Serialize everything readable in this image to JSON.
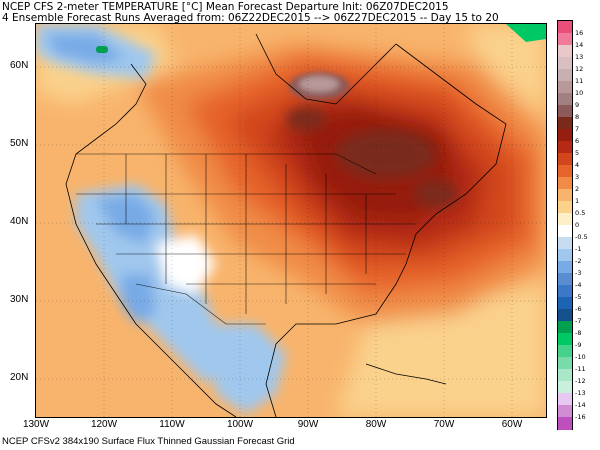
{
  "title": {
    "line1": "NCEP CFS 2-meter TEMPERATURE [°C] Mean Forecast Departure Init: 06Z07DEC2015",
    "line2": "4 Ensemble Forecast Runs Averaged from: 06Z22DEC2015 --> 06Z27DEC2015 -- Day 15 to 20"
  },
  "footer": "NCEP CFSv2 384x190 Surface Flux Thinned Gaussian Forecast Grid",
  "map": {
    "lat_labels": [
      "60N",
      "50N",
      "40N",
      "30N",
      "20N"
    ],
    "lon_labels": [
      "130W",
      "120W",
      "110W",
      "100W",
      "90W",
      "80W",
      "70W",
      "60W"
    ],
    "region": "North America",
    "extent": {
      "lon": [
        -130,
        -55
      ],
      "lat": [
        15,
        66
      ]
    }
  },
  "colorbar": {
    "levels": [
      "16",
      "14",
      "13",
      "12",
      "11",
      "10",
      "9",
      "8",
      "7",
      "6",
      "5",
      "4",
      "3",
      "2",
      "1",
      "0.5",
      "0",
      "-0.5",
      "-1",
      "-2",
      "-3",
      "-4",
      "-5",
      "-6",
      "-7",
      "-8",
      "-9",
      "-10",
      "-11",
      "-12",
      "-13",
      "-14",
      "-16"
    ],
    "colors": [
      "#e8507a",
      "#f07a9a",
      "#e8c8c8",
      "#d8c0c0",
      "#c8b0b0",
      "#b89898",
      "#a08080",
      "#8c5a5a",
      "#7a2a1a",
      "#961e10",
      "#b42a14",
      "#d2461e",
      "#e6642c",
      "#f08c46",
      "#f8b46c",
      "#fad28c",
      "#fdf0c8",
      "#ffffff",
      "#c8dcf0",
      "#a0c8ee",
      "#78aae6",
      "#5a8cd2",
      "#3c78c8",
      "#1e64b4",
      "#14508c",
      "#00a050",
      "#00c864",
      "#46d28c",
      "#78dcaa",
      "#aae6c8",
      "#c8f0dc",
      "#e6c8f0",
      "#d28cd2",
      "#be50be"
    ]
  }
}
